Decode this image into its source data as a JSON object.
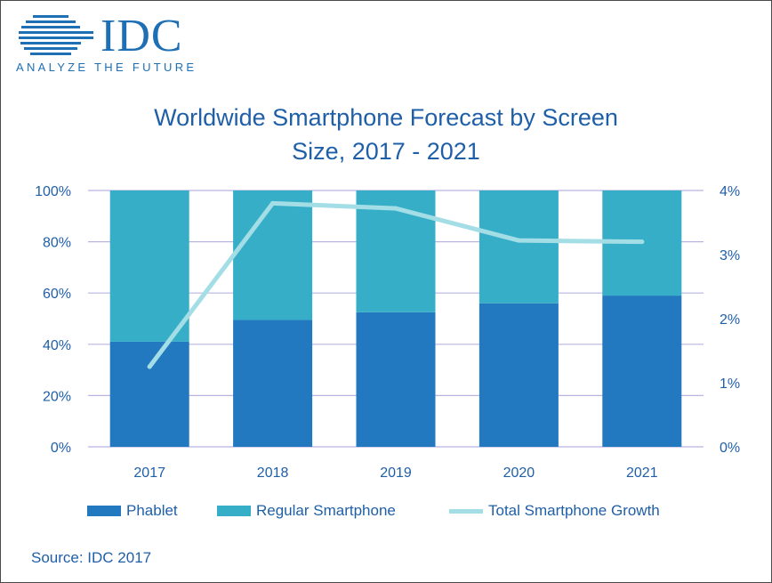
{
  "logo": {
    "wordmark": "IDC",
    "tagline": "ANALYZE THE FUTURE",
    "color": "#1f6fb5"
  },
  "title_line1": "Worldwide Smartphone Forecast by Screen",
  "title_line2": "Size, 2017 - 2021",
  "source": "Source: IDC 2017",
  "colors": {
    "phablet": "#2279bf",
    "regular": "#37aec8",
    "growth": "#a3dde5",
    "text": "#1f5fa8",
    "grid": "#b8b5e0"
  },
  "chart_data": {
    "type": "bar",
    "stacked": true,
    "categories": [
      "2017",
      "2018",
      "2019",
      "2020",
      "2021"
    ],
    "series": [
      {
        "name": "Phablet",
        "axis": "left",
        "values": [
          41,
          49.5,
          52.5,
          56,
          59
        ]
      },
      {
        "name": "Regular Smartphone",
        "axis": "left",
        "values": [
          59,
          50.5,
          47.5,
          44,
          41
        ]
      },
      {
        "name": "Total Smartphone Growth",
        "type": "line",
        "axis": "right",
        "values": [
          1.25,
          3.8,
          3.72,
          3.22,
          3.2
        ]
      }
    ],
    "y_left": {
      "lim": [
        0,
        100
      ],
      "ticks": [
        "0%",
        "20%",
        "40%",
        "60%",
        "80%",
        "100%"
      ],
      "tick_values": [
        0,
        20,
        40,
        60,
        80,
        100
      ]
    },
    "y_right": {
      "lim": [
        0,
        4
      ],
      "ticks": [
        "0%",
        "1%",
        "2%",
        "3%",
        "4%"
      ],
      "tick_values": [
        0,
        1,
        2,
        3,
        4
      ]
    },
    "grid": true,
    "legend_position": "bottom"
  }
}
